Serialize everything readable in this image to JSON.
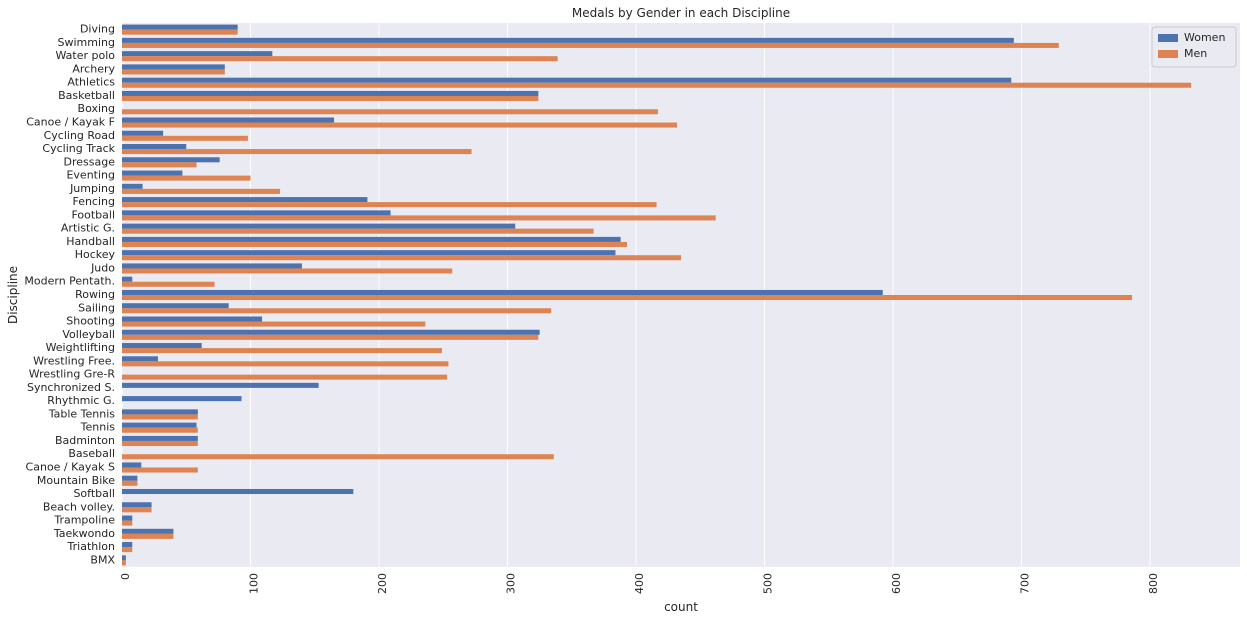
{
  "chart_data": {
    "type": "bar",
    "orientation": "horizontal",
    "title": "Medals by Gender in each Discipline",
    "xlabel": "count",
    "ylabel": "Discipline",
    "xlim": [
      0,
      870
    ],
    "xticks": [
      0,
      100,
      200,
      300,
      400,
      500,
      600,
      700,
      800
    ],
    "grid": true,
    "legend_position": "top-right",
    "categories": [
      "Diving",
      "Swimming",
      "Water polo",
      "Archery",
      "Athletics",
      "Basketball",
      "Boxing",
      "Canoe / Kayak F",
      "Cycling Road",
      "Cycling Track",
      "Dressage",
      "Eventing",
      "Jumping",
      "Fencing",
      "Football",
      "Artistic G.",
      "Handball",
      "Hockey",
      "Judo",
      "Modern Pentath.",
      "Rowing",
      "Sailing",
      "Shooting",
      "Volleyball",
      "Weightlifting",
      "Wrestling Free.",
      "Wrestling Gre-R",
      "Synchronized S.",
      "Rhythmic G.",
      "Table Tennis",
      "Tennis",
      "Badminton",
      "Baseball",
      "Canoe / Kayak S",
      "Mountain Bike",
      "Softball",
      "Beach volley.",
      "Trampoline",
      "Taekwondo",
      "Triathlon",
      "BMX"
    ],
    "series": [
      {
        "name": "Women",
        "color": "#4c72b0",
        "values": [
          90,
          694,
          117,
          80,
          692,
          324,
          0,
          165,
          32,
          50,
          76,
          47,
          16,
          191,
          209,
          306,
          388,
          384,
          140,
          8,
          592,
          83,
          109,
          325,
          62,
          28,
          0,
          153,
          93,
          59,
          58,
          59,
          0,
          15,
          12,
          180,
          23,
          8,
          40,
          8,
          3
        ]
      },
      {
        "name": "Men",
        "color": "#dd8452",
        "values": [
          90,
          729,
          339,
          80,
          832,
          324,
          417,
          432,
          98,
          272,
          58,
          100,
          123,
          416,
          462,
          367,
          393,
          435,
          257,
          72,
          786,
          334,
          236,
          324,
          249,
          254,
          253,
          0,
          0,
          59,
          59,
          59,
          336,
          59,
          12,
          0,
          23,
          8,
          40,
          8,
          3
        ]
      }
    ]
  },
  "colors": {
    "background": "#eaeaf2",
    "grid": "#ffffff",
    "women": "#4c72b0",
    "men": "#dd8452"
  }
}
